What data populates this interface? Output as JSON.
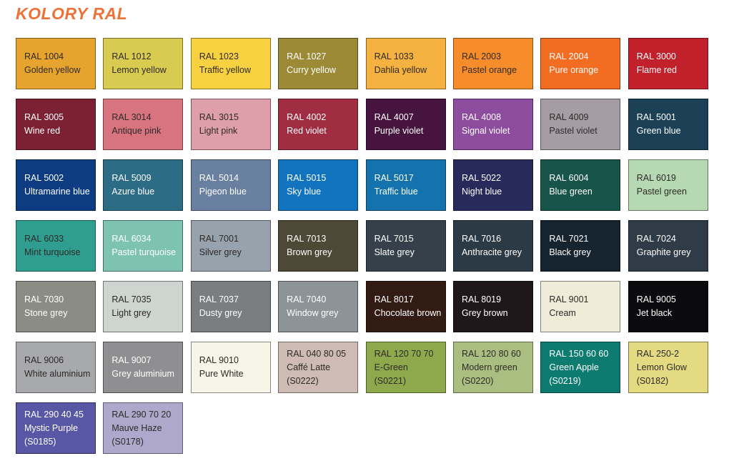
{
  "title": "KOLORY RAL",
  "colors": {
    "title": "#EE7137",
    "background": "#FFFFFF",
    "dark_text": "#2E2A27",
    "light_text": "#FFFFFF",
    "swatch_border": "rgba(0,0,0,0.45)"
  },
  "chart_data": {
    "type": "table",
    "title": "KOLORY RAL",
    "columns": 8,
    "entries": [
      {
        "code": "RAL 1004",
        "name": "Golden yellow",
        "hex": "#E6A32E",
        "text": "dark"
      },
      {
        "code": "RAL 1012",
        "name": "Lemon yellow",
        "hex": "#D9CB50",
        "text": "dark"
      },
      {
        "code": "RAL 1023",
        "name": "Traffic yellow",
        "hex": "#F8D140",
        "text": "dark"
      },
      {
        "code": "RAL 1027",
        "name": "Curry yellow",
        "hex": "#9C8A37",
        "text": "light"
      },
      {
        "code": "RAL 1033",
        "name": "Dahlia yellow",
        "hex": "#F5B240",
        "text": "dark"
      },
      {
        "code": "RAL 2003",
        "name": "Pastel orange",
        "hex": "#F78D2A",
        "text": "dark"
      },
      {
        "code": "RAL 2004",
        "name": "Pure orange",
        "hex": "#F26D22",
        "text": "light"
      },
      {
        "code": "RAL 3000",
        "name": "Flame red",
        "hex": "#C2212B",
        "text": "light"
      },
      {
        "code": "RAL 3005",
        "name": "Wine red",
        "hex": "#7C2033",
        "text": "light"
      },
      {
        "code": "RAL 3014",
        "name": "Antique pink",
        "hex": "#D77480",
        "text": "dark"
      },
      {
        "code": "RAL 3015",
        "name": "Light pink",
        "hex": "#DE9FAA",
        "text": "dark"
      },
      {
        "code": "RAL 4002",
        "name": "Red violet",
        "hex": "#A02D42",
        "text": "light"
      },
      {
        "code": "RAL 4007",
        "name": "Purple violet",
        "hex": "#471440",
        "text": "light"
      },
      {
        "code": "RAL 4008",
        "name": "Signal violet",
        "hex": "#8D4C9E",
        "text": "light"
      },
      {
        "code": "RAL 4009",
        "name": "Pastel violet",
        "hex": "#A69DA4",
        "text": "dark"
      },
      {
        "code": "RAL 5001",
        "name": "Green blue",
        "hex": "#1C4157",
        "text": "light"
      },
      {
        "code": "RAL 5002",
        "name": "Ultramarine blue",
        "hex": "#0D3C83",
        "text": "light"
      },
      {
        "code": "RAL 5009",
        "name": "Azure blue",
        "hex": "#2C6C84",
        "text": "light"
      },
      {
        "code": "RAL 5014",
        "name": "Pigeon blue",
        "hex": "#6A80A0",
        "text": "light"
      },
      {
        "code": "RAL 5015",
        "name": "Sky blue",
        "hex": "#1274BE",
        "text": "light"
      },
      {
        "code": "RAL 5017",
        "name": "Traffic blue",
        "hex": "#1473AC",
        "text": "light"
      },
      {
        "code": "RAL 5022",
        "name": "Night blue",
        "hex": "#292A5C",
        "text": "light"
      },
      {
        "code": "RAL 6004",
        "name": "Blue green",
        "hex": "#17544A",
        "text": "light"
      },
      {
        "code": "RAL 6019",
        "name": "Pastel green",
        "hex": "#B6D9B4",
        "text": "dark"
      },
      {
        "code": "RAL 6033",
        "name": "Mint turquoise",
        "hex": "#2F9E90",
        "text": "dark"
      },
      {
        "code": "RAL 6034",
        "name": "Pastel turquoise",
        "hex": "#7EC3B0",
        "text": "light"
      },
      {
        "code": "RAL 7001",
        "name": "Silver grey",
        "hex": "#97A2AD",
        "text": "dark"
      },
      {
        "code": "RAL 7013",
        "name": "Brown grey",
        "hex": "#4E4836",
        "text": "light"
      },
      {
        "code": "RAL 7015",
        "name": "Slate grey",
        "hex": "#35404B",
        "text": "light"
      },
      {
        "code": "RAL 7016",
        "name": "Anthracite grey",
        "hex": "#2C3A45",
        "text": "light"
      },
      {
        "code": "RAL 7021",
        "name": "Black grey",
        "hex": "#16242F",
        "text": "light"
      },
      {
        "code": "RAL 7024",
        "name": "Graphite grey",
        "hex": "#2F3B47",
        "text": "light"
      },
      {
        "code": "RAL 7030",
        "name": "Stone grey",
        "hex": "#8B8D85",
        "text": "light"
      },
      {
        "code": "RAL 7035",
        "name": "Light grey",
        "hex": "#CED4CF",
        "text": "dark"
      },
      {
        "code": "RAL 7037",
        "name": "Dusty grey",
        "hex": "#7B7E81",
        "text": "light"
      },
      {
        "code": "RAL 7040",
        "name": "Window grey",
        "hex": "#8C9498",
        "text": "light"
      },
      {
        "code": "RAL 8017",
        "name": "Chocolate brown",
        "hex": "#311B13",
        "text": "light"
      },
      {
        "code": "RAL 8019",
        "name": "Grey brown",
        "hex": "#1F171A",
        "text": "light"
      },
      {
        "code": "RAL 9001",
        "name": "Cream",
        "hex": "#F0ECDA",
        "text": "dark"
      },
      {
        "code": "RAL 9005",
        "name": "Jet black",
        "hex": "#0B0B0E",
        "text": "light"
      },
      {
        "code": "RAL 9006",
        "name": "White aluminium",
        "hex": "#A7A9AC",
        "text": "dark"
      },
      {
        "code": "RAL 9007",
        "name": "Grey aluminium",
        "hex": "#8F8F91",
        "text": "light"
      },
      {
        "code": "RAL 9010",
        "name": "Pure White",
        "hex": "#F6F5E8",
        "text": "dark"
      },
      {
        "code": "RAL 040 80 05",
        "name": "Caffé Latte",
        "sub": "(S0222)",
        "hex": "#CEBCB4",
        "text": "dark"
      },
      {
        "code": "RAL 120 70 70",
        "name": "E-Green",
        "sub": "(S0221)",
        "hex": "#8EA94C",
        "text": "dark"
      },
      {
        "code": "RAL 120 80 60",
        "name": "Modern green",
        "sub": "(S0220)",
        "hex": "#ABBE81",
        "text": "dark"
      },
      {
        "code": "RAL 150 60 60",
        "name": "Green Apple",
        "sub": "(S0219)",
        "hex": "#0E7B71",
        "text": "light"
      },
      {
        "code": "RAL 250-2",
        "name": "Lemon Glow",
        "sub": "(S0182)",
        "hex": "#E4DA82",
        "text": "dark"
      },
      {
        "code": "RAL 290 40 45",
        "name": "Mystic Purple",
        "sub": "(S0185)",
        "hex": "#5857A5",
        "text": "light"
      },
      {
        "code": "RAL 290 70 20",
        "name": "Mauve Haze",
        "sub": "(S0178)",
        "hex": "#ADA8CC",
        "text": "dark"
      }
    ]
  }
}
